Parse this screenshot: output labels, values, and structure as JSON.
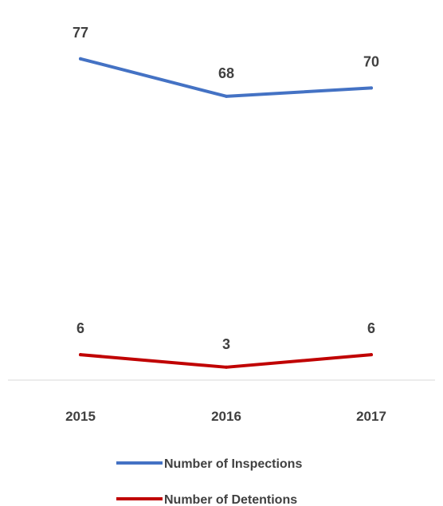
{
  "chart_data": {
    "type": "line",
    "categories": [
      "2015",
      "2016",
      "2017"
    ],
    "series": [
      {
        "name": "Number of Inspections",
        "values": [
          77,
          68,
          70
        ],
        "color": "#4472C4"
      },
      {
        "name": "Number of Detentions",
        "values": [
          6,
          3,
          6
        ],
        "color": "#C00000"
      }
    ],
    "axis_line_color": "#D9D9D9",
    "ylim": [
      0,
      80
    ],
    "grid": false,
    "legend_position": "bottom",
    "data_labels": true
  }
}
